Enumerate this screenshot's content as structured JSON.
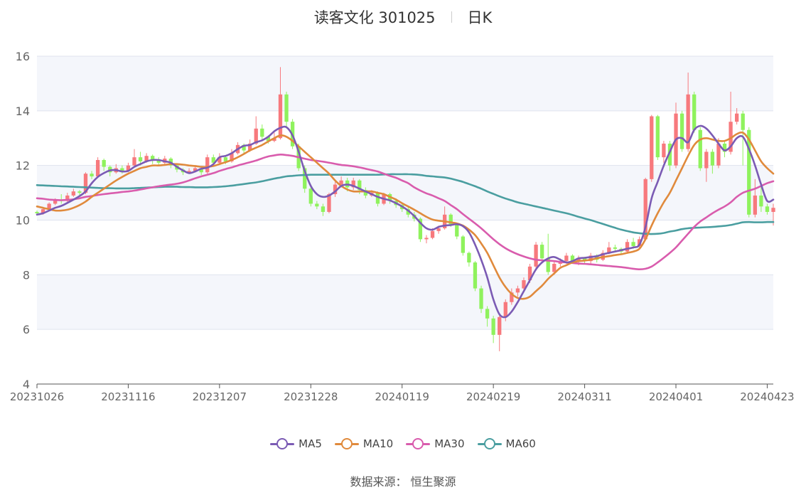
{
  "header": {
    "title": "读客文化 301025",
    "subtitle": "日K"
  },
  "source": "数据来源： 恒生聚源",
  "colors": {
    "up": "#f7797d",
    "down": "#8ff25d",
    "grid": "#dfe3ee",
    "band": "#f4f6fb"
  },
  "chart_data": {
    "type": "candlestick",
    "ylim": [
      4,
      16
    ],
    "y_ticks": [
      4,
      6,
      8,
      10,
      12,
      14,
      16
    ],
    "x_tick_labels": [
      "20231026",
      "20231116",
      "20231207",
      "20231228",
      "20240119",
      "20240219",
      "20240311",
      "20240401",
      "20240423"
    ],
    "x_tick_index": [
      0,
      15,
      30,
      45,
      60,
      75,
      90,
      105,
      120
    ],
    "legend": [
      {
        "name": "MA5",
        "color": "#7b5bb4"
      },
      {
        "name": "MA10",
        "color": "#e08a3c"
      },
      {
        "name": "MA30",
        "color": "#d95cad"
      },
      {
        "name": "MA60",
        "color": "#4a9ea0"
      }
    ],
    "ohlc": [
      [
        10.3,
        10.25,
        10.35,
        10.2
      ],
      [
        10.25,
        10.4,
        10.45,
        10.2
      ],
      [
        10.4,
        10.6,
        10.65,
        10.35
      ],
      [
        10.6,
        10.75,
        10.8,
        10.55
      ],
      [
        10.75,
        10.7,
        10.95,
        10.6
      ],
      [
        10.7,
        10.9,
        11.0,
        10.65
      ],
      [
        10.9,
        11.05,
        11.15,
        10.85
      ],
      [
        11.05,
        11.0,
        11.1,
        10.9
      ],
      [
        11.0,
        11.7,
        11.75,
        10.95
      ],
      [
        11.7,
        11.6,
        11.8,
        11.5
      ],
      [
        11.6,
        12.2,
        12.3,
        11.55
      ],
      [
        12.2,
        11.95,
        12.25,
        11.8
      ],
      [
        11.95,
        11.75,
        12.0,
        11.6
      ],
      [
        11.75,
        11.9,
        12.05,
        11.7
      ],
      [
        11.9,
        11.8,
        12.0,
        11.7
      ],
      [
        11.8,
        12.0,
        12.1,
        11.75
      ],
      [
        12.0,
        12.3,
        12.6,
        11.95
      ],
      [
        12.3,
        12.15,
        12.5,
        12.0
      ],
      [
        12.15,
        12.35,
        12.45,
        12.1
      ],
      [
        12.35,
        12.2,
        12.4,
        12.05
      ],
      [
        12.2,
        12.1,
        12.3,
        12.0
      ],
      [
        12.1,
        12.25,
        12.35,
        12.0
      ],
      [
        12.25,
        12.0,
        12.3,
        11.9
      ],
      [
        12.0,
        11.85,
        12.05,
        11.75
      ],
      [
        11.85,
        11.75,
        11.9,
        11.65
      ],
      [
        11.75,
        11.8,
        11.9,
        11.7
      ],
      [
        11.8,
        11.9,
        12.0,
        11.75
      ],
      [
        11.9,
        11.75,
        11.95,
        11.65
      ],
      [
        11.75,
        12.3,
        12.4,
        11.7
      ],
      [
        12.3,
        12.1,
        12.4,
        12.0
      ],
      [
        12.1,
        12.3,
        12.45,
        12.05
      ],
      [
        12.3,
        12.15,
        12.35,
        12.05
      ],
      [
        12.15,
        12.45,
        12.6,
        12.1
      ],
      [
        12.45,
        12.75,
        12.85,
        12.4
      ],
      [
        12.75,
        12.55,
        12.8,
        12.4
      ],
      [
        12.55,
        12.8,
        12.95,
        12.5
      ],
      [
        12.8,
        13.35,
        13.8,
        12.75
      ],
      [
        13.35,
        13.05,
        13.5,
        12.95
      ],
      [
        13.05,
        12.9,
        13.1,
        12.8
      ],
      [
        12.9,
        13.0,
        13.2,
        12.85
      ],
      [
        13.0,
        14.6,
        15.6,
        12.95
      ],
      [
        14.6,
        13.6,
        14.7,
        13.4
      ],
      [
        13.6,
        12.7,
        13.7,
        12.6
      ],
      [
        12.7,
        11.9,
        12.8,
        11.8
      ],
      [
        11.9,
        11.15,
        12.0,
        11.0
      ],
      [
        11.15,
        10.6,
        11.3,
        10.5
      ],
      [
        10.6,
        10.5,
        10.7,
        10.4
      ],
      [
        10.5,
        10.3,
        10.6,
        10.15
      ],
      [
        10.3,
        10.95,
        11.0,
        10.25
      ],
      [
        10.95,
        11.3,
        11.4,
        10.85
      ],
      [
        11.3,
        11.45,
        11.6,
        11.2
      ],
      [
        11.45,
        11.2,
        11.55,
        11.05
      ],
      [
        11.2,
        11.45,
        11.55,
        11.1
      ],
      [
        11.45,
        11.1,
        11.5,
        10.95
      ],
      [
        11.1,
        10.9,
        11.2,
        10.8
      ],
      [
        10.9,
        11.0,
        11.1,
        10.85
      ],
      [
        11.0,
        10.6,
        11.05,
        10.5
      ],
      [
        10.6,
        10.95,
        11.0,
        10.55
      ],
      [
        10.95,
        10.7,
        11.0,
        10.6
      ],
      [
        10.7,
        10.55,
        10.8,
        10.45
      ],
      [
        10.55,
        10.4,
        10.6,
        10.3
      ],
      [
        10.4,
        10.2,
        10.5,
        10.1
      ],
      [
        10.2,
        10.05,
        10.3,
        9.95
      ],
      [
        10.05,
        9.3,
        10.1,
        9.2
      ],
      [
        9.3,
        9.35,
        9.45,
        9.15
      ],
      [
        9.35,
        9.6,
        9.7,
        9.3
      ],
      [
        9.6,
        9.7,
        9.8,
        9.5
      ],
      [
        9.7,
        10.2,
        10.5,
        9.65
      ],
      [
        10.2,
        9.85,
        10.25,
        9.75
      ],
      [
        9.85,
        9.4,
        9.9,
        9.3
      ],
      [
        9.4,
        8.8,
        9.45,
        8.7
      ],
      [
        8.8,
        8.45,
        8.85,
        8.3
      ],
      [
        8.45,
        7.5,
        8.5,
        7.4
      ],
      [
        7.5,
        6.75,
        7.6,
        6.6
      ],
      [
        6.75,
        6.4,
        6.85,
        6.1
      ],
      [
        6.4,
        5.8,
        6.5,
        5.5
      ],
      [
        5.8,
        6.45,
        6.5,
        5.2
      ],
      [
        6.45,
        7.0,
        7.1,
        6.3
      ],
      [
        7.0,
        7.35,
        7.5,
        6.9
      ],
      [
        7.35,
        7.5,
        7.6,
        7.2
      ],
      [
        7.5,
        7.8,
        7.9,
        7.4
      ],
      [
        7.8,
        8.3,
        8.4,
        7.7
      ],
      [
        8.3,
        9.1,
        9.2,
        8.2
      ],
      [
        9.1,
        8.6,
        9.2,
        8.5
      ],
      [
        8.6,
        8.1,
        9.5,
        8.0
      ],
      [
        8.1,
        8.4,
        8.5,
        8.0
      ],
      [
        8.4,
        8.5,
        8.6,
        8.3
      ],
      [
        8.5,
        8.7,
        8.8,
        8.4
      ],
      [
        8.7,
        8.5,
        8.75,
        8.4
      ],
      [
        8.5,
        8.6,
        8.7,
        8.35
      ],
      [
        8.6,
        8.5,
        8.65,
        8.4
      ],
      [
        8.5,
        8.7,
        8.8,
        8.35
      ],
      [
        8.7,
        8.55,
        8.75,
        8.45
      ],
      [
        8.55,
        8.8,
        8.9,
        8.5
      ],
      [
        8.8,
        9.0,
        9.2,
        8.75
      ],
      [
        9.0,
        8.95,
        9.1,
        8.85
      ],
      [
        8.95,
        8.85,
        9.0,
        8.75
      ],
      [
        8.85,
        9.2,
        9.3,
        8.8
      ],
      [
        9.2,
        9.05,
        9.35,
        8.95
      ],
      [
        9.05,
        9.3,
        9.4,
        9.0
      ],
      [
        9.3,
        11.5,
        11.55,
        9.25
      ],
      [
        11.5,
        13.8,
        13.85,
        11.4
      ],
      [
        13.8,
        12.3,
        13.85,
        12.2
      ],
      [
        12.3,
        12.8,
        12.9,
        12.1
      ],
      [
        12.8,
        12.0,
        12.9,
        11.8
      ],
      [
        12.0,
        13.9,
        14.3,
        11.9
      ],
      [
        13.9,
        12.6,
        14.0,
        12.5
      ],
      [
        12.6,
        14.6,
        15.4,
        12.5
      ],
      [
        14.6,
        13.3,
        14.7,
        13.2
      ],
      [
        13.3,
        11.9,
        13.4,
        11.8
      ],
      [
        11.9,
        12.5,
        12.6,
        11.4
      ],
      [
        12.5,
        12.0,
        12.6,
        11.7
      ],
      [
        12.0,
        12.8,
        13.0,
        11.9
      ],
      [
        12.8,
        12.5,
        12.9,
        12.3
      ],
      [
        12.5,
        13.6,
        14.7,
        12.4
      ],
      [
        13.6,
        13.9,
        14.1,
        13.5
      ],
      [
        13.9,
        13.3,
        14.0,
        12.0
      ],
      [
        13.3,
        10.2,
        13.4,
        10.1
      ],
      [
        10.2,
        10.9,
        11.5,
        10.1
      ],
      [
        10.9,
        10.5,
        11.3,
        10.3
      ],
      [
        10.5,
        10.3,
        10.6,
        10.2
      ],
      [
        10.3,
        10.45,
        10.6,
        9.8
      ]
    ],
    "ma5": [
      10.2,
      10.25,
      10.35,
      10.45,
      10.52,
      10.63,
      10.75,
      10.88,
      11.05,
      11.35,
      11.58,
      11.72,
      11.82,
      11.83,
      11.78,
      11.8,
      11.95,
      12.05,
      12.15,
      12.2,
      12.2,
      12.15,
      12.1,
      11.95,
      11.82,
      11.72,
      11.78,
      11.88,
      11.92,
      12.05,
      12.3,
      12.35,
      12.45,
      12.6,
      12.72,
      12.75,
      12.85,
      12.92,
      13.05,
      13.25,
      13.38,
      13.4,
      13.1,
      12.5,
      11.8,
      11.25,
      10.95,
      10.85,
      10.9,
      11.05,
      11.25,
      11.3,
      11.25,
      11.15,
      11.05,
      10.95,
      10.85,
      10.78,
      10.72,
      10.62,
      10.5,
      10.35,
      10.15,
      9.9,
      9.7,
      9.65,
      9.75,
      9.8,
      9.82,
      9.85,
      9.78,
      9.55,
      9.1,
      8.55,
      7.9,
      7.1,
      6.55,
      6.45,
      6.65,
      7.0,
      7.4,
      7.8,
      8.2,
      8.45,
      8.6,
      8.65,
      8.55,
      8.45,
      8.5,
      8.6,
      8.62,
      8.65,
      8.68,
      8.75,
      8.8,
      8.85,
      8.9,
      8.95,
      9.0,
      9.1,
      9.75,
      10.8,
      11.4,
      12.0,
      12.5,
      12.95,
      13.0,
      12.85,
      13.3,
      13.45,
      13.35,
      13.1,
      12.8,
      12.55,
      12.7,
      13.0,
      13.05,
      12.6,
      12.0,
      11.3,
      10.7,
      10.75
    ],
    "ma10": [
      10.5,
      10.45,
      10.4,
      10.35,
      10.35,
      10.38,
      10.45,
      10.55,
      10.68,
      10.85,
      11.0,
      11.15,
      11.3,
      11.45,
      11.58,
      11.7,
      11.8,
      11.9,
      11.95,
      12.0,
      12.0,
      12.02,
      12.05,
      12.05,
      12.03,
      12.0,
      11.98,
      11.95,
      11.95,
      11.98,
      12.05,
      12.12,
      12.2,
      12.3,
      12.42,
      12.55,
      12.65,
      12.75,
      12.88,
      13.0,
      13.1,
      13.05,
      12.9,
      12.7,
      12.5,
      12.3,
      12.1,
      11.9,
      11.7,
      11.45,
      11.25,
      11.12,
      11.05,
      11.05,
      11.05,
      11.05,
      11.0,
      10.95,
      10.85,
      10.75,
      10.62,
      10.5,
      10.38,
      10.25,
      10.12,
      10.02,
      9.98,
      9.95,
      9.92,
      9.88,
      9.8,
      9.65,
      9.45,
      9.15,
      8.8,
      8.35,
      7.9,
      7.55,
      7.3,
      7.15,
      7.12,
      7.2,
      7.4,
      7.6,
      7.85,
      8.05,
      8.25,
      8.35,
      8.45,
      8.5,
      8.52,
      8.55,
      8.6,
      8.65,
      8.68,
      8.72,
      8.75,
      8.8,
      8.85,
      8.95,
      9.3,
      9.8,
      10.25,
      10.65,
      11.0,
      11.45,
      11.9,
      12.35,
      12.75,
      12.95,
      13.0,
      12.95,
      12.9,
      12.9,
      13.0,
      13.15,
      13.2,
      12.95,
      12.55,
      12.15,
      11.9,
      11.7
    ],
    "ma30": [
      10.8,
      10.78,
      10.75,
      10.74,
      10.73,
      10.74,
      10.76,
      10.8,
      10.85,
      10.88,
      10.92,
      10.95,
      10.98,
      11.0,
      11.03,
      11.05,
      11.08,
      11.12,
      11.16,
      11.2,
      11.24,
      11.27,
      11.3,
      11.33,
      11.38,
      11.45,
      11.53,
      11.6,
      11.66,
      11.72,
      11.8,
      11.87,
      11.93,
      12.0,
      12.06,
      12.12,
      12.18,
      12.26,
      12.33,
      12.37,
      12.4,
      12.38,
      12.35,
      12.3,
      12.25,
      12.2,
      12.17,
      12.14,
      12.1,
      12.06,
      12.02,
      12.0,
      11.97,
      11.93,
      11.88,
      11.83,
      11.78,
      11.7,
      11.62,
      11.55,
      11.45,
      11.35,
      11.2,
      11.08,
      10.98,
      10.9,
      10.8,
      10.7,
      10.55,
      10.4,
      10.22,
      10.05,
      9.88,
      9.7,
      9.5,
      9.3,
      9.12,
      8.97,
      8.85,
      8.75,
      8.67,
      8.6,
      8.55,
      8.53,
      8.52,
      8.5,
      8.47,
      8.45,
      8.43,
      8.41,
      8.4,
      8.38,
      8.36,
      8.34,
      8.32,
      8.3,
      8.28,
      8.25,
      8.22,
      8.2,
      8.22,
      8.3,
      8.45,
      8.62,
      8.8,
      9.0,
      9.25,
      9.5,
      9.75,
      9.95,
      10.1,
      10.25,
      10.38,
      10.5,
      10.65,
      10.85,
      11.0,
      11.08,
      11.15,
      11.25,
      11.35,
      11.42
    ],
    "ma60": [
      11.28,
      11.27,
      11.26,
      11.25,
      11.24,
      11.23,
      11.22,
      11.21,
      11.2,
      11.19,
      11.18,
      11.17,
      11.17,
      11.16,
      11.16,
      11.16,
      11.17,
      11.18,
      11.19,
      11.2,
      11.21,
      11.22,
      11.22,
      11.22,
      11.21,
      11.21,
      11.2,
      11.2,
      11.2,
      11.21,
      11.22,
      11.24,
      11.26,
      11.29,
      11.32,
      11.35,
      11.38,
      11.42,
      11.47,
      11.52,
      11.56,
      11.6,
      11.62,
      11.64,
      11.65,
      11.66,
      11.66,
      11.66,
      11.66,
      11.66,
      11.66,
      11.66,
      11.66,
      11.66,
      11.66,
      11.66,
      11.66,
      11.67,
      11.68,
      11.68,
      11.68,
      11.68,
      11.67,
      11.65,
      11.62,
      11.6,
      11.58,
      11.56,
      11.52,
      11.46,
      11.4,
      11.32,
      11.24,
      11.15,
      11.05,
      10.96,
      10.87,
      10.79,
      10.72,
      10.65,
      10.6,
      10.55,
      10.5,
      10.45,
      10.4,
      10.35,
      10.3,
      10.25,
      10.19,
      10.12,
      10.06,
      10.0,
      9.93,
      9.86,
      9.79,
      9.72,
      9.65,
      9.6,
      9.55,
      9.52,
      9.5,
      9.49,
      9.5,
      9.53,
      9.58,
      9.62,
      9.67,
      9.7,
      9.72,
      9.73,
      9.74,
      9.75,
      9.77,
      9.79,
      9.82,
      9.87,
      9.92,
      9.93,
      9.92,
      9.92,
      9.93,
      9.93
    ]
  }
}
